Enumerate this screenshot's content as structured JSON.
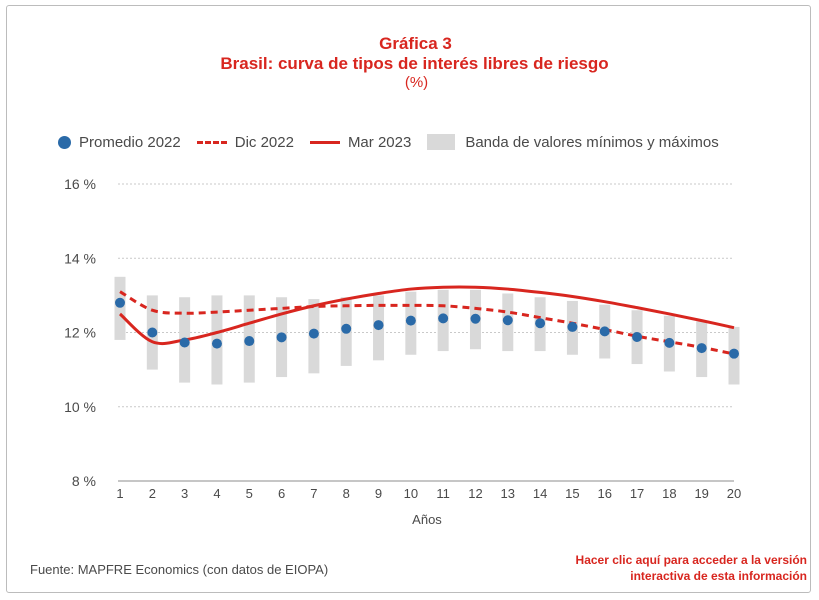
{
  "title": "Gráfica 3",
  "subtitle": "Brasil: curva de tipos de interés libres de riesgo",
  "unit": "(%)",
  "legend": {
    "avg": "Promedio 2022",
    "dic": "Dic 2022",
    "mar": "Mar 2023",
    "band": "Banda de valores mínimos y máximos"
  },
  "source": "Fuente: MAPFRE Economics (con datos de EIOPA)",
  "link_line1": "Hacer clic aquí para acceder a la versión",
  "link_line2": "interactiva de esta información",
  "colors": {
    "accent": "#d8261f",
    "dot": "#2a6aa8",
    "band": "#d9d9d9"
  },
  "chart_data": {
    "type": "line",
    "xlabel": "Años",
    "x": [
      1,
      2,
      3,
      4,
      5,
      6,
      7,
      8,
      9,
      10,
      11,
      12,
      13,
      14,
      15,
      16,
      17,
      18,
      19,
      20
    ],
    "ylim": [
      8,
      16
    ],
    "yticks": [
      8,
      10,
      12,
      14,
      16
    ],
    "ytick_labels": [
      "8 %",
      "10 %",
      "12 %",
      "14 %",
      "16 %"
    ],
    "grid": true,
    "legend_position": "top",
    "series": [
      {
        "name": "Promedio 2022",
        "style": "dots",
        "values": [
          12.8,
          12.0,
          11.73,
          11.7,
          11.77,
          11.87,
          11.97,
          12.1,
          12.2,
          12.32,
          12.38,
          12.37,
          12.33,
          12.25,
          12.15,
          12.03,
          11.88,
          11.72,
          11.58,
          11.43
        ]
      },
      {
        "name": "Dic 2022",
        "style": "dashed",
        "values": [
          13.1,
          12.6,
          12.52,
          12.55,
          12.6,
          12.65,
          12.7,
          12.72,
          12.73,
          12.73,
          12.72,
          12.65,
          12.55,
          12.4,
          12.25,
          12.08,
          11.9,
          11.75,
          11.6,
          11.42
        ]
      },
      {
        "name": "Mar 2023",
        "style": "solid",
        "values": [
          12.5,
          11.75,
          11.8,
          12.0,
          12.25,
          12.5,
          12.72,
          12.9,
          13.05,
          13.17,
          13.22,
          13.22,
          13.17,
          13.08,
          12.97,
          12.83,
          12.67,
          12.5,
          12.32,
          12.13
        ]
      },
      {
        "name": "Banda de valores mínimos y máximos",
        "style": "band",
        "min": [
          11.8,
          11.0,
          10.65,
          10.6,
          10.65,
          10.8,
          10.9,
          11.1,
          11.25,
          11.4,
          11.5,
          11.55,
          11.5,
          11.5,
          11.4,
          11.3,
          11.15,
          10.95,
          10.8,
          10.6
        ],
        "max": [
          13.5,
          13.0,
          12.95,
          13.0,
          13.0,
          12.95,
          12.9,
          12.95,
          13.0,
          13.1,
          13.15,
          13.15,
          13.05,
          12.95,
          12.85,
          12.75,
          12.6,
          12.45,
          12.3,
          12.15
        ]
      }
    ]
  }
}
